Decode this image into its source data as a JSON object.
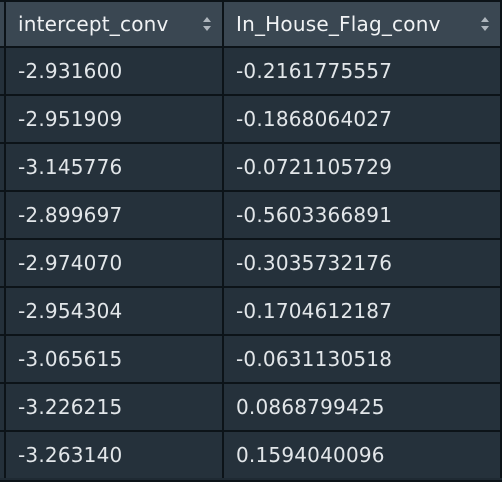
{
  "table": {
    "columns": [
      {
        "label": "intercept_conv",
        "sort_icon": "sort-updown-icon"
      },
      {
        "label": "In_House_Flag_conv",
        "sort_icon": "sort-updown-icon"
      }
    ],
    "rows": [
      [
        "-2.931600",
        "-0.2161775557"
      ],
      [
        "-2.951909",
        "-0.1868064027"
      ],
      [
        "-3.145776",
        "-0.0721105729"
      ],
      [
        "-2.899697",
        "-0.5603366891"
      ],
      [
        "-2.974070",
        "-0.3035732176"
      ],
      [
        "-2.954304",
        "-0.1704612187"
      ],
      [
        "-3.065615",
        "-0.0631130518"
      ],
      [
        "-3.226215",
        "0.0868799425"
      ],
      [
        "-3.263140",
        "0.1594040096"
      ]
    ]
  },
  "colors": {
    "header_bg": "#3a4752",
    "cell_bg": "#25313b",
    "grid_line": "#0c1318",
    "text": "#e2e6e9"
  }
}
